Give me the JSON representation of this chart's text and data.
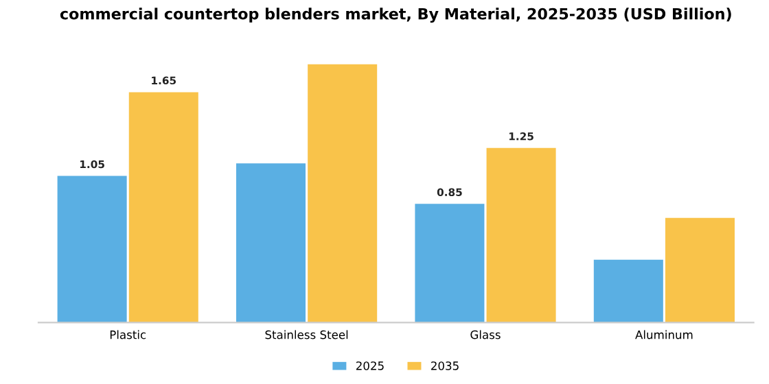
{
  "chart_data": {
    "type": "bar",
    "title": "commercial countertop blenders market, By Material, 2025-2035 (USD Billion)",
    "categories": [
      "Plastic",
      "Stainless Steel",
      "Glass",
      "Aluminum"
    ],
    "series": [
      {
        "name": "2025",
        "color": "#5aafe3",
        "values": [
          1.05,
          1.14,
          0.85,
          0.45
        ],
        "value_labels": [
          "1.05",
          null,
          "0.85",
          null
        ]
      },
      {
        "name": "2035",
        "color": "#f9c34a",
        "values": [
          1.65,
          1.85,
          1.25,
          0.75
        ],
        "value_labels": [
          "1.65",
          null,
          "1.25",
          null
        ]
      }
    ],
    "legend": "bottom",
    "grid": false,
    "tick_labels": "x"
  }
}
